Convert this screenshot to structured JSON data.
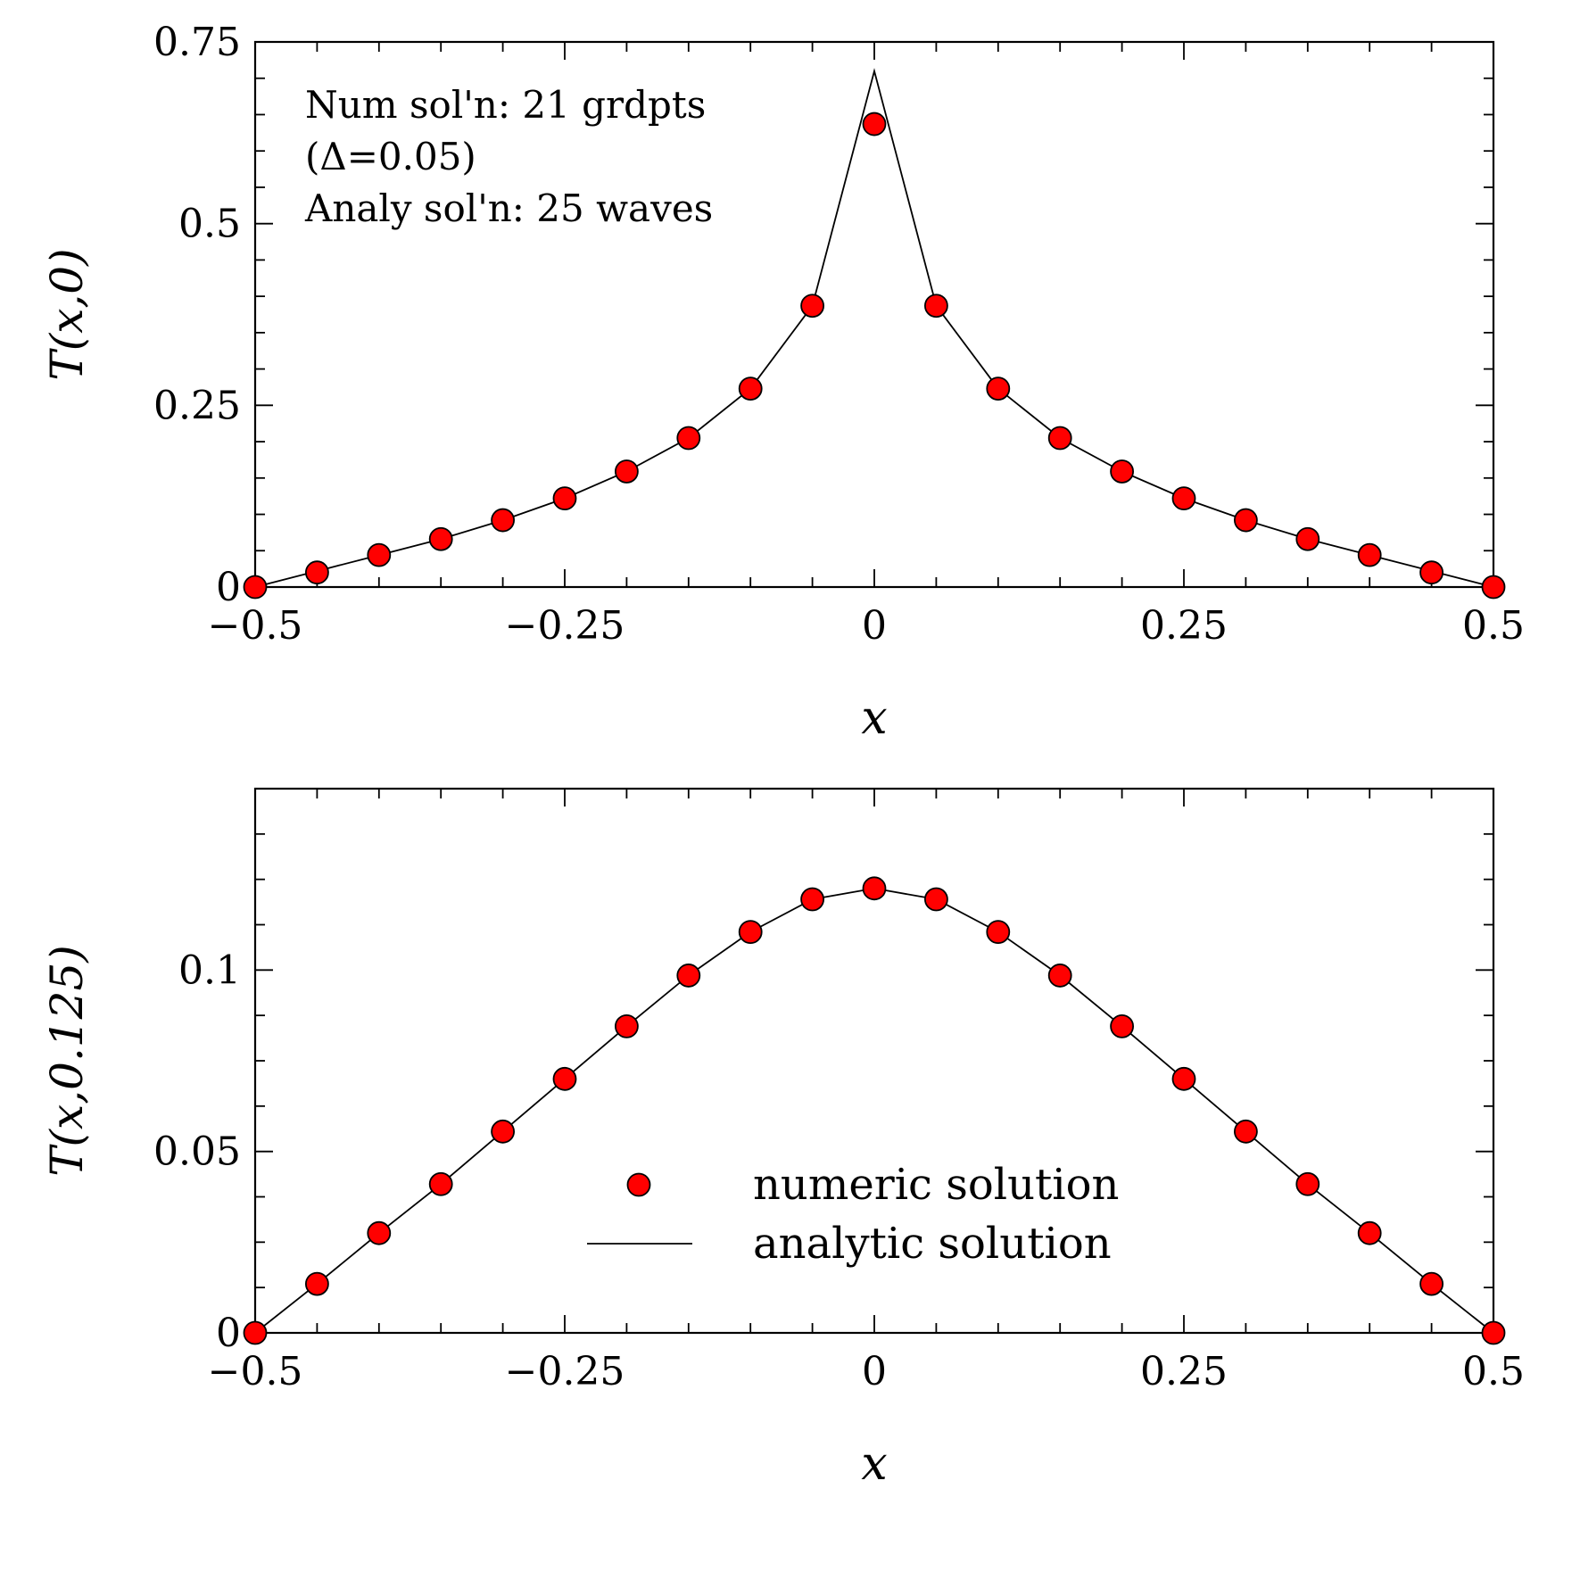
{
  "chart_data": [
    {
      "type": "scatter",
      "xlabel": "x",
      "ylabel": "T(x,0)",
      "xlim": [
        -0.5,
        0.5
      ],
      "ylim": [
        0,
        0.75
      ],
      "x_ticks": [
        -0.5,
        -0.25,
        0,
        0.25,
        0.5
      ],
      "x_tick_labels": [
        "−0.5",
        "−0.25",
        "0",
        "0.25",
        "0.5"
      ],
      "y_ticks": [
        0,
        0.25,
        0.5,
        0.75
      ],
      "y_tick_labels": [
        "0",
        "0.25",
        "0.5",
        "0.75"
      ],
      "grid": false,
      "annotation": [
        "Num sol'n: 21 grdpts",
        "(Δ=0.05)",
        "Analy sol'n: 25 waves"
      ],
      "series": [
        {
          "kind": "points",
          "marker": "circle",
          "color": "#ff0000",
          "x": [
            -0.5,
            -0.45,
            -0.4,
            -0.35,
            -0.3,
            -0.25,
            -0.2,
            -0.15,
            -0.1,
            -0.05,
            0,
            0.05,
            0.1,
            0.15,
            0.2,
            0.25,
            0.3,
            0.35,
            0.4,
            0.45,
            0.5
          ],
          "y": [
            0,
            0.02,
            0.044,
            0.066,
            0.092,
            0.122,
            0.159,
            0.205,
            0.273,
            0.387,
            0.637,
            0.387,
            0.273,
            0.205,
            0.159,
            0.122,
            0.092,
            0.066,
            0.044,
            0.02,
            0
          ]
        },
        {
          "kind": "line",
          "color": "#000000",
          "x": [
            -0.5,
            -0.45,
            -0.4,
            -0.35,
            -0.3,
            -0.25,
            -0.2,
            -0.15,
            -0.1,
            -0.05,
            0,
            0.05,
            0.1,
            0.15,
            0.2,
            0.25,
            0.3,
            0.35,
            0.4,
            0.45,
            0.5
          ],
          "y": [
            0,
            0.022,
            0.044,
            0.066,
            0.092,
            0.122,
            0.159,
            0.205,
            0.273,
            0.387,
            0.71,
            0.387,
            0.273,
            0.205,
            0.159,
            0.122,
            0.092,
            0.066,
            0.044,
            0.022,
            0
          ]
        }
      ]
    },
    {
      "type": "scatter",
      "xlabel": "x",
      "ylabel": "T(x,0.125)",
      "xlim": [
        -0.5,
        0.5
      ],
      "ylim": [
        0,
        0.15
      ],
      "x_ticks": [
        -0.5,
        -0.25,
        0,
        0.25,
        0.5
      ],
      "x_tick_labels": [
        "−0.5",
        "−0.25",
        "0",
        "0.25",
        "0.5"
      ],
      "y_ticks": [
        0,
        0.05,
        0.1
      ],
      "y_tick_labels": [
        "0",
        "0.05",
        "0.1"
      ],
      "grid": false,
      "legend": {
        "placement": "bottom-center",
        "entries": [
          {
            "label": "numeric solution",
            "kind": "points"
          },
          {
            "label": "analytic solution",
            "kind": "line"
          }
        ]
      },
      "series": [
        {
          "name": "numeric solution",
          "kind": "points",
          "marker": "circle",
          "color": "#ff0000",
          "x": [
            -0.5,
            -0.45,
            -0.4,
            -0.35,
            -0.3,
            -0.25,
            -0.2,
            -0.15,
            -0.1,
            -0.05,
            0,
            0.05,
            0.1,
            0.15,
            0.2,
            0.25,
            0.3,
            0.35,
            0.4,
            0.45,
            0.5
          ],
          "y": [
            0,
            0.0135,
            0.0275,
            0.041,
            0.0555,
            0.07,
            0.0845,
            0.0985,
            0.1105,
            0.1195,
            0.1225,
            0.1195,
            0.1105,
            0.0985,
            0.0845,
            0.07,
            0.0555,
            0.041,
            0.0275,
            0.0135,
            0
          ]
        },
        {
          "name": "analytic solution",
          "kind": "line",
          "color": "#000000",
          "x": [
            -0.5,
            -0.45,
            -0.4,
            -0.35,
            -0.3,
            -0.25,
            -0.2,
            -0.15,
            -0.1,
            -0.05,
            0,
            0.05,
            0.1,
            0.15,
            0.2,
            0.25,
            0.3,
            0.35,
            0.4,
            0.45,
            0.5
          ],
          "y": [
            0,
            0.0135,
            0.0275,
            0.041,
            0.0555,
            0.07,
            0.0845,
            0.0985,
            0.1105,
            0.1195,
            0.1225,
            0.1195,
            0.1105,
            0.0985,
            0.0845,
            0.07,
            0.0555,
            0.041,
            0.0275,
            0.0135,
            0
          ]
        }
      ]
    }
  ]
}
